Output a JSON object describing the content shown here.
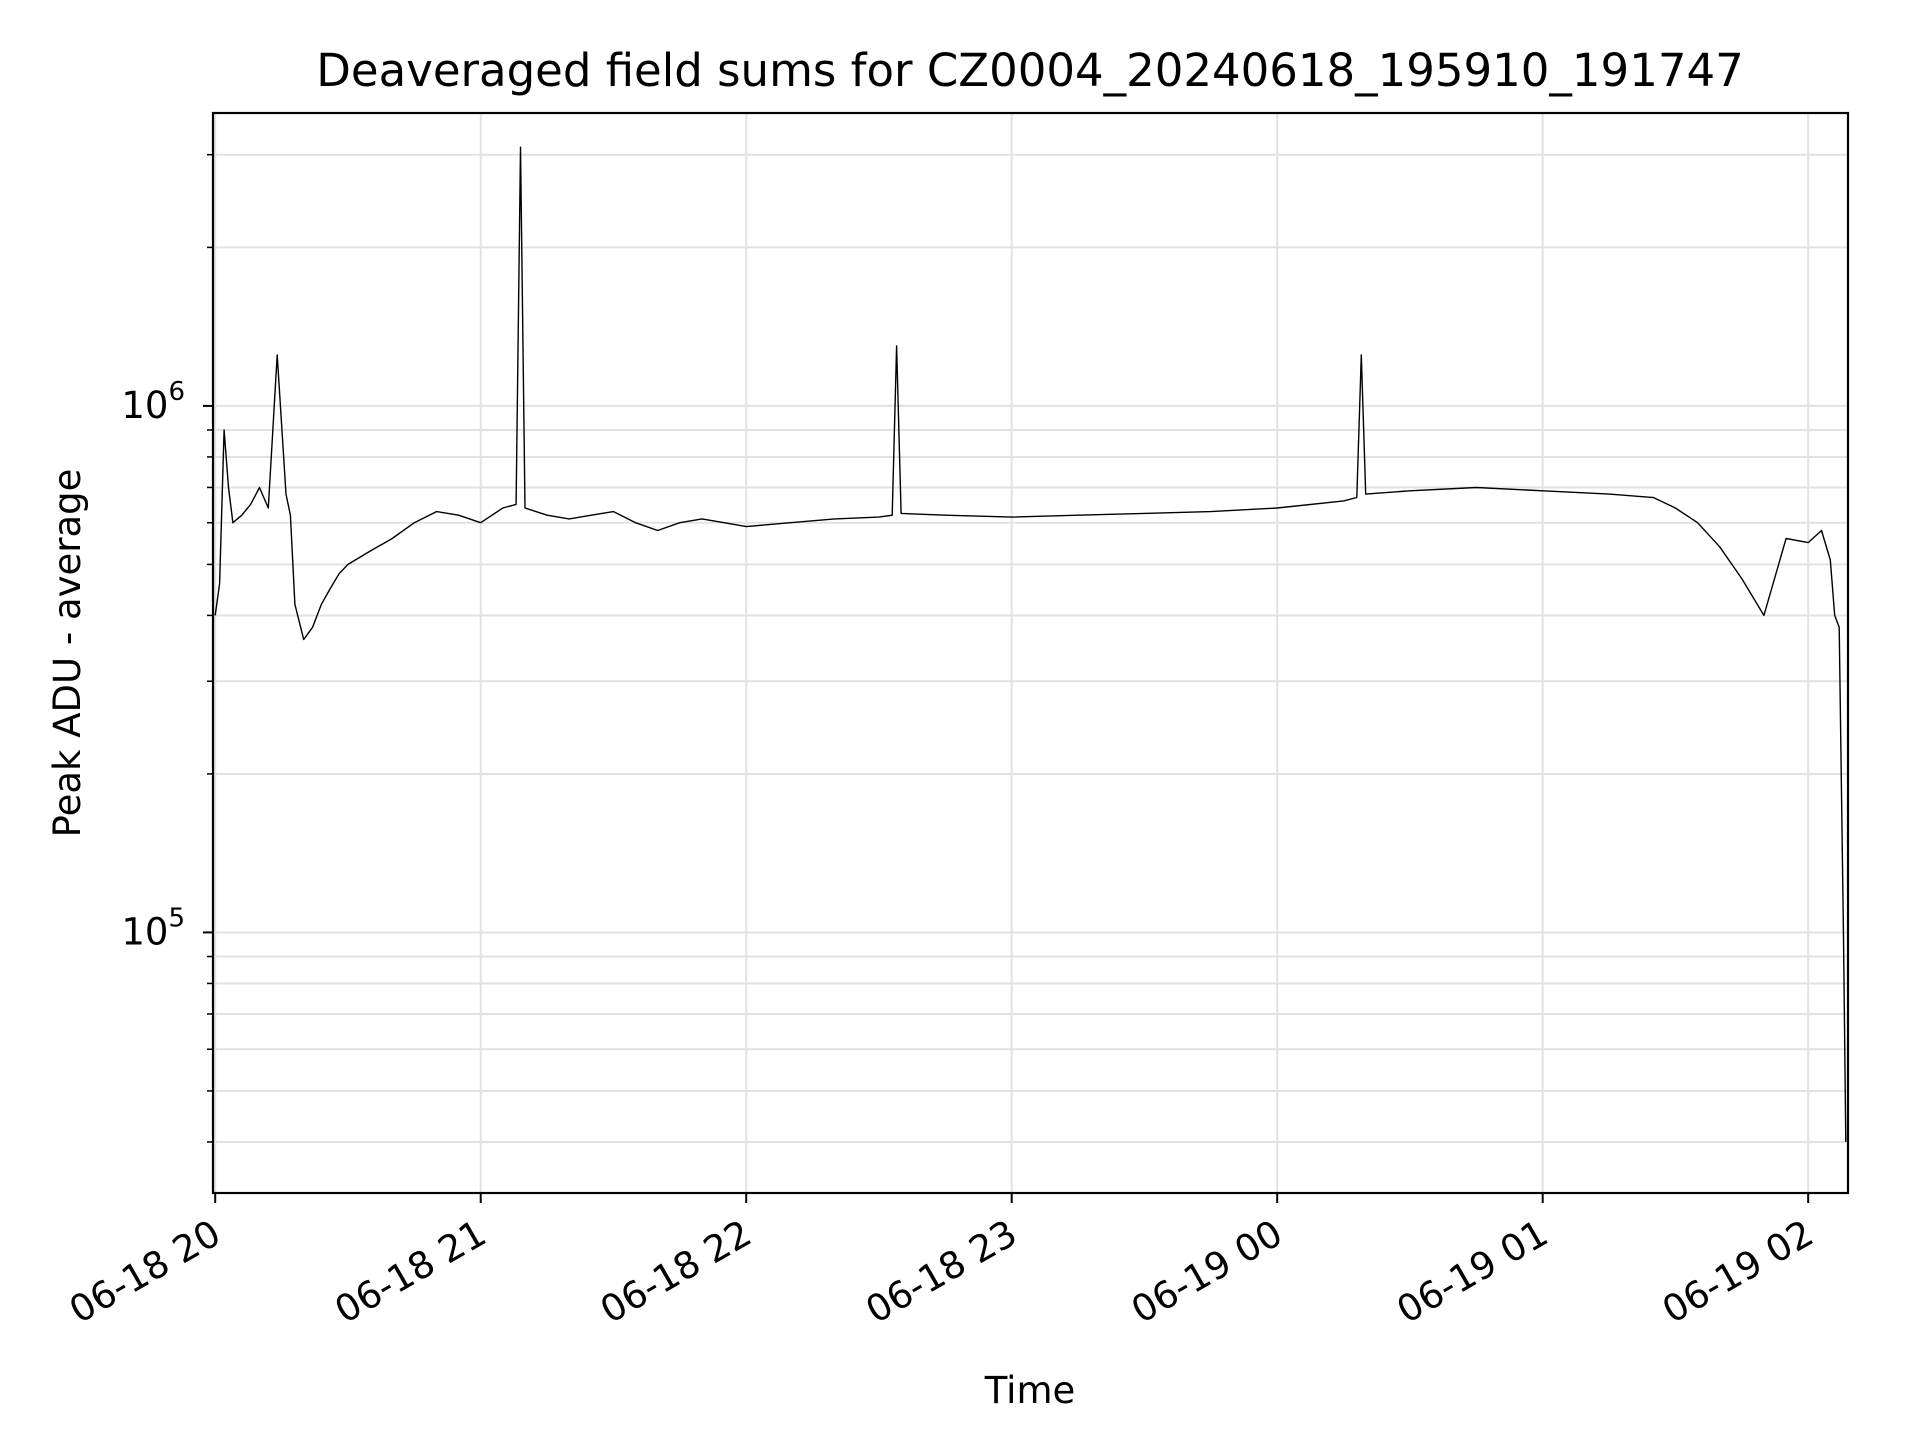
{
  "chart_data": {
    "type": "line",
    "title": "Deaveraged field sums for CZ0004_20240618_195910_191747",
    "xlabel": "Time",
    "ylabel": "Peak ADU - average",
    "yscale": "log",
    "xlim": [
      "2024-06-18 19:59:30",
      "2024-06-19 02:09:00"
    ],
    "ylim": [
      32000,
      3600000
    ],
    "grid": true,
    "legend": "none",
    "line_color": "#000000",
    "x_ticks": [
      {
        "value": "2024-06-18 20:00",
        "label": "06-18 20"
      },
      {
        "value": "2024-06-18 21:00",
        "label": "06-18 21"
      },
      {
        "value": "2024-06-18 22:00",
        "label": "06-18 22"
      },
      {
        "value": "2024-06-18 23:00",
        "label": "06-18 23"
      },
      {
        "value": "2024-06-19 00:00",
        "label": "06-19 00"
      },
      {
        "value": "2024-06-19 01:00",
        "label": "06-19 01"
      },
      {
        "value": "2024-06-19 02:00",
        "label": "06-19 02"
      }
    ],
    "y_ticks": [
      {
        "value": 100000,
        "base": "10",
        "exp": "5"
      },
      {
        "value": 1000000,
        "base": "10",
        "exp": "6"
      }
    ],
    "series": [
      {
        "x": [
          "2024-06-18 20:00:00",
          "2024-06-18 20:01:00",
          "2024-06-18 20:02:00",
          "2024-06-18 20:03:00",
          "2024-06-18 20:04:00",
          "2024-06-18 20:06:00",
          "2024-06-18 20:08:00",
          "2024-06-18 20:10:00",
          "2024-06-18 20:12:00",
          "2024-06-18 20:14:00",
          "2024-06-18 20:16:00",
          "2024-06-18 20:17:00",
          "2024-06-18 20:18:00",
          "2024-06-18 20:20:00",
          "2024-06-18 20:22:00",
          "2024-06-18 20:24:00",
          "2024-06-18 20:26:00",
          "2024-06-18 20:28:00",
          "2024-06-18 20:30:00",
          "2024-06-18 20:35:00",
          "2024-06-18 20:40:00",
          "2024-06-18 20:45:00",
          "2024-06-18 20:50:00",
          "2024-06-18 20:55:00",
          "2024-06-18 21:00:00",
          "2024-06-18 21:05:00",
          "2024-06-18 21:08:00",
          "2024-06-18 21:09:00",
          "2024-06-18 21:10:00",
          "2024-06-18 21:15:00",
          "2024-06-18 21:20:00",
          "2024-06-18 21:25:00",
          "2024-06-18 21:30:00",
          "2024-06-18 21:35:00",
          "2024-06-18 21:40:00",
          "2024-06-18 21:45:00",
          "2024-06-18 21:50:00",
          "2024-06-18 21:55:00",
          "2024-06-18 22:00:00",
          "2024-06-18 22:10:00",
          "2024-06-18 22:20:00",
          "2024-06-18 22:30:00",
          "2024-06-18 22:33:00",
          "2024-06-18 22:34:00",
          "2024-06-18 22:35:00",
          "2024-06-18 22:45:00",
          "2024-06-18 23:00:00",
          "2024-06-18 23:15:00",
          "2024-06-18 23:30:00",
          "2024-06-18 23:45:00",
          "2024-06-19 00:00:00",
          "2024-06-19 00:15:00",
          "2024-06-19 00:18:00",
          "2024-06-19 00:19:00",
          "2024-06-19 00:20:00",
          "2024-06-19 00:30:00",
          "2024-06-19 00:45:00",
          "2024-06-19 01:00:00",
          "2024-06-19 01:15:00",
          "2024-06-19 01:25:00",
          "2024-06-19 01:30:00",
          "2024-06-19 01:35:00",
          "2024-06-19 01:40:00",
          "2024-06-19 01:45:00",
          "2024-06-19 01:50:00",
          "2024-06-19 01:55:00",
          "2024-06-19 02:00:00",
          "2024-06-19 02:03:00",
          "2024-06-19 02:05:00",
          "2024-06-19 02:06:00",
          "2024-06-19 02:07:00",
          "2024-06-19 02:08:00",
          "2024-06-19 02:08:30"
        ],
        "y": [
          400000,
          460000,
          900000,
          700000,
          600000,
          620000,
          650000,
          700000,
          640000,
          1250000,
          680000,
          620000,
          420000,
          360000,
          380000,
          420000,
          450000,
          480000,
          500000,
          530000,
          560000,
          600000,
          630000,
          620000,
          600000,
          640000,
          650000,
          3100000,
          640000,
          620000,
          610000,
          620000,
          630000,
          600000,
          580000,
          600000,
          610000,
          600000,
          590000,
          600000,
          610000,
          615000,
          620000,
          1300000,
          625000,
          620000,
          615000,
          620000,
          625000,
          630000,
          640000,
          660000,
          670000,
          1250000,
          680000,
          690000,
          700000,
          690000,
          680000,
          670000,
          640000,
          600000,
          540000,
          470000,
          400000,
          560000,
          550000,
          580000,
          510000,
          400000,
          380000,
          95000,
          40000
        ]
      }
    ]
  }
}
